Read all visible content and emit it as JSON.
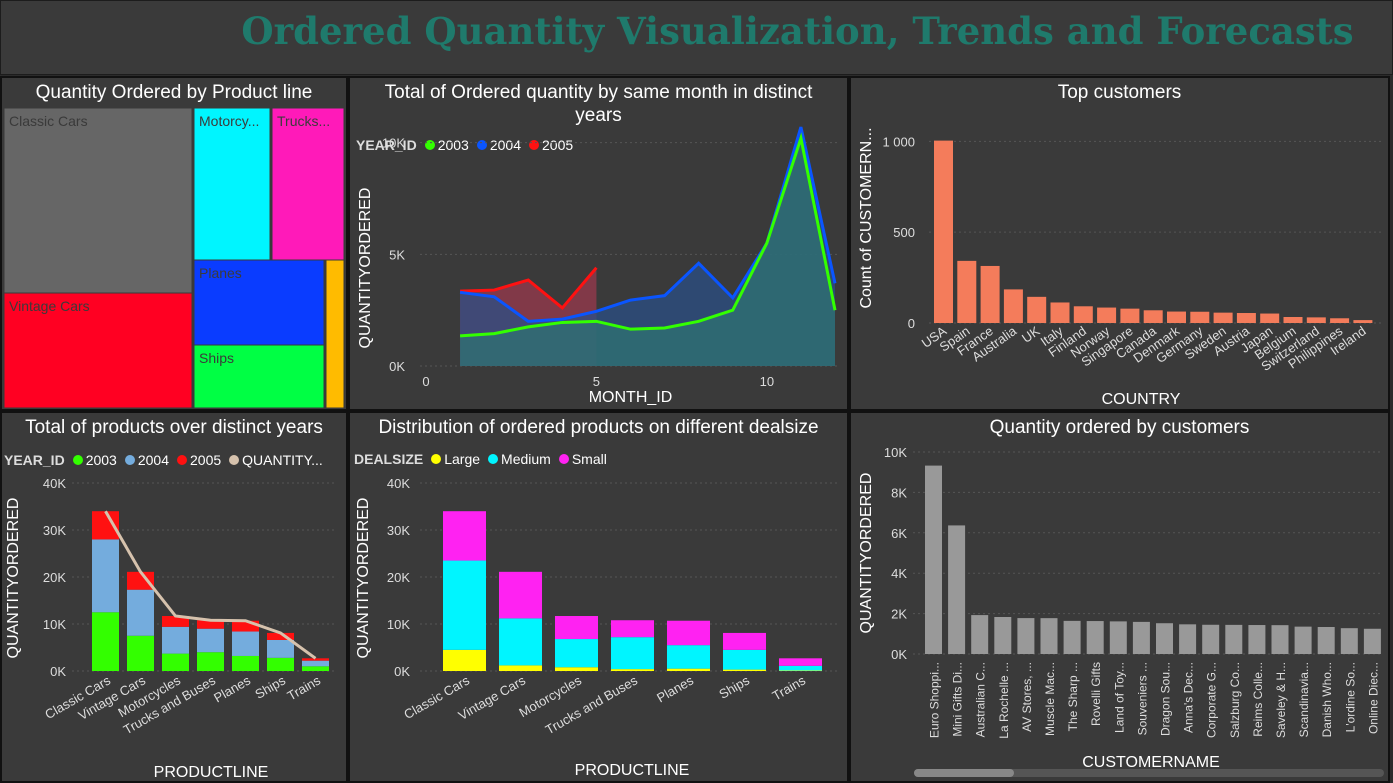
{
  "header": {
    "title": "Ordered Quantity Visualization, Trends and Forecasts"
  },
  "colors": {
    "treemap_tiles": [
      "#666666",
      "#ff0022",
      "#00f5ff",
      "#ff1ab9",
      "#0a3cff",
      "#00ff44",
      "#ffbb00"
    ],
    "y2003": "#33ff00",
    "y2004": "#0a55ff",
    "y2005": "#ff1111",
    "y2004_bar": "#74acdd",
    "trend": "#d6c2ad",
    "large": "#ffff00",
    "medium": "#00f5ff",
    "small": "#ff22f2",
    "countries": "#f47c5b",
    "customers": "#999999"
  },
  "treemap": {
    "title": "Quantity Ordered by Product line",
    "tiles": [
      {
        "label": "Classic Cars",
        "value": 33992
      },
      {
        "label": "Vintage Cars",
        "value": 21069
      },
      {
        "label": "Motorcy...",
        "value": 11663
      },
      {
        "label": "Trucks...",
        "value": 10777
      },
      {
        "label": "Planes",
        "value": 10727
      },
      {
        "label": "Ships",
        "value": 8127
      },
      {
        "label": "",
        "value": 2712
      }
    ]
  },
  "monthly": {
    "title": "Total of Ordered quantity by same month in distinct years",
    "legend_title": "YEAR_ID",
    "xlabel": "MONTH_ID",
    "ylabel": "QUANTITYORDERED",
    "chart_data": {
      "type": "area",
      "x": [
        1,
        2,
        3,
        4,
        5,
        6,
        7,
        8,
        9,
        10,
        11,
        12
      ],
      "series": [
        {
          "name": "2003",
          "values": [
            1350,
            1450,
            1750,
            1950,
            2000,
            1650,
            1700,
            2000,
            2500,
            5500,
            10200,
            2500
          ]
        },
        {
          "name": "2004",
          "values": [
            3300,
            3100,
            2000,
            2100,
            2450,
            2950,
            3150,
            4600,
            3050,
            5500,
            10700,
            3700
          ]
        },
        {
          "name": "2005",
          "values": [
            3350,
            3400,
            3850,
            2600,
            4400,
            null,
            null,
            null,
            null,
            null,
            null,
            null
          ]
        }
      ],
      "xticks": [
        "0",
        "5",
        "10"
      ],
      "yticks": [
        "0K",
        "5K",
        "10K"
      ],
      "xlim": [
        0,
        12
      ],
      "ylim": [
        0,
        12000
      ]
    }
  },
  "topcust": {
    "title": "Top customers",
    "xlabel": "COUNTRY",
    "ylabel": "Count of CUSTOMERN...",
    "chart_data": {
      "type": "bar",
      "categories": [
        "USA",
        "Spain",
        "France",
        "Australia",
        "UK",
        "Italy",
        "Finland",
        "Norway",
        "Singapore",
        "Canada",
        "Denmark",
        "Germany",
        "Sweden",
        "Austria",
        "Japan",
        "Belgium",
        "Switzerland",
        "Philippines",
        "Ireland"
      ],
      "values": [
        1004,
        342,
        314,
        185,
        144,
        113,
        92,
        85,
        79,
        70,
        63,
        62,
        57,
        55,
        52,
        33,
        31,
        26,
        16
      ],
      "yticks": [
        "0",
        "500",
        "1 000"
      ],
      "ylim": [
        0,
        1200
      ]
    }
  },
  "products": {
    "title": "Total of products over distinct years",
    "legend_title": "YEAR_ID",
    "legend_trend": "QUANTITY...",
    "xlabel": "PRODUCTLINE",
    "ylabel": "QUANTITYORDERED",
    "chart_data": {
      "type": "bar",
      "categories": [
        "Classic Cars",
        "Vintage Cars",
        "Motorcycles",
        "Trucks and Buses",
        "Planes",
        "Ships",
        "Trains"
      ],
      "series": [
        {
          "name": "2003",
          "values": [
            12500,
            7500,
            3700,
            4000,
            3200,
            2800,
            1000
          ]
        },
        {
          "name": "2004",
          "values": [
            15500,
            9800,
            5700,
            5000,
            5200,
            3800,
            1200
          ]
        },
        {
          "name": "2005",
          "values": [
            6000,
            3800,
            2300,
            1800,
            2300,
            1500,
            500
          ]
        },
        {
          "name": "QUANTITY...",
          "values": [
            34000,
            21100,
            11700,
            10800,
            10700,
            8100,
            2700
          ]
        }
      ],
      "yticks": [
        "0K",
        "10K",
        "20K",
        "30K",
        "40K"
      ],
      "ylim": [
        0,
        40000
      ]
    }
  },
  "dealsize": {
    "title": "Distribution of ordered products on different dealsize",
    "legend_title": "DEALSIZE",
    "xlabel": "PRODUCTLINE",
    "ylabel": "QUANTITYORDERED",
    "chart_data": {
      "type": "bar",
      "categories": [
        "Classic Cars",
        "Vintage Cars",
        "Motorcycles",
        "Trucks and Buses",
        "Planes",
        "Ships",
        "Trains"
      ],
      "series": [
        {
          "name": "Large",
          "values": [
            4500,
            1200,
            800,
            400,
            500,
            300,
            100
          ]
        },
        {
          "name": "Medium",
          "values": [
            19000,
            10000,
            6000,
            6800,
            5000,
            4200,
            1000
          ]
        },
        {
          "name": "Small",
          "values": [
            10500,
            9900,
            4900,
            3600,
            5200,
            3600,
            1600
          ]
        }
      ],
      "yticks": [
        "0K",
        "10K",
        "20K",
        "30K",
        "40K"
      ],
      "ylim": [
        0,
        40000
      ]
    }
  },
  "bycust": {
    "title": "Quantity ordered by customers",
    "xlabel": "CUSTOMERNAME",
    "ylabel": "QUANTITYORDERED",
    "chart_data": {
      "type": "bar",
      "categories": [
        "Euro Shoppi...",
        "Mini Gifts Di...",
        "Australian C...",
        "La Rochelle ...",
        "AV Stores, ...",
        "Muscle Mac...",
        "The Sharp ...",
        "Rovelli Gifts",
        "Land of Toy...",
        "Souveniers ...",
        "Dragon Sou...",
        "Anna's Dec...",
        "Corporate G...",
        "Salzburg Co...",
        "Reims Colle...",
        "Saveley & H...",
        "Scandinavia...",
        "Danish Who...",
        "L'ordine So...",
        "Online Diec..."
      ],
      "values": [
        9327,
        6366,
        1926,
        1832,
        1778,
        1775,
        1640,
        1631,
        1615,
        1590,
        1524,
        1469,
        1447,
        1442,
        1434,
        1428,
        1355,
        1337,
        1278,
        1249
      ],
      "yticks": [
        "0K",
        "2K",
        "4K",
        "6K",
        "8K",
        "10K"
      ],
      "ylim": [
        0,
        10000
      ]
    }
  }
}
